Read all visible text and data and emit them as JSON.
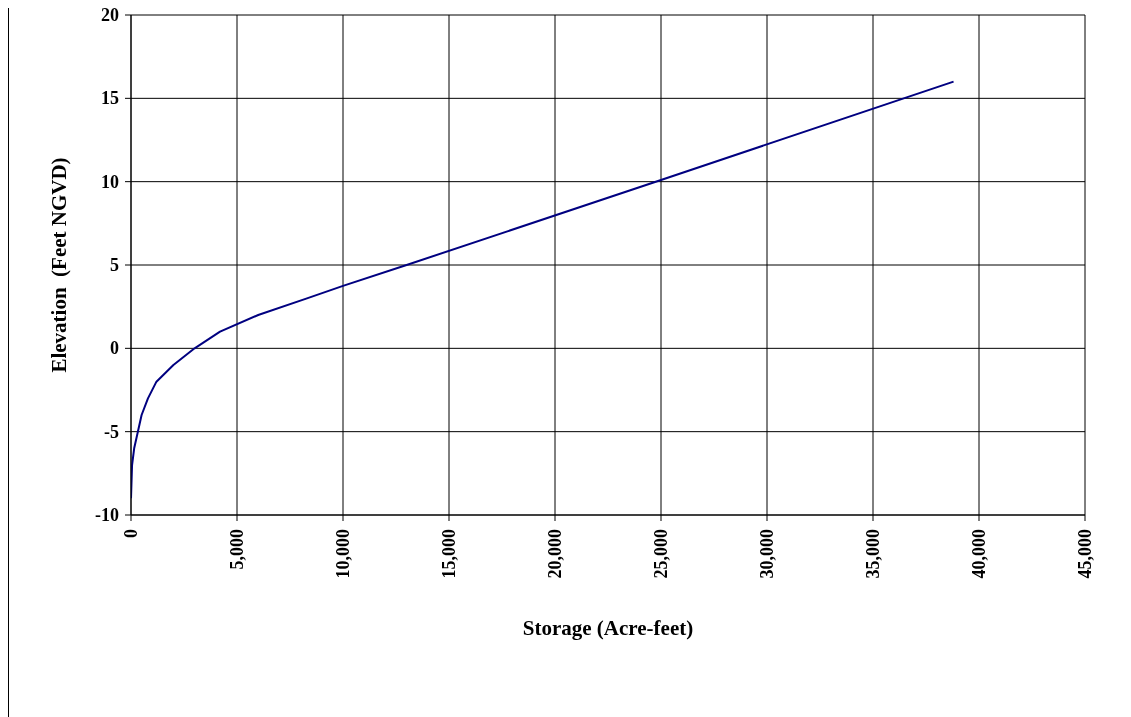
{
  "chart_data": {
    "type": "line",
    "xlabel": "Storage (Acre-feet)",
    "ylabel": "Elevation  (Feet NGVD)",
    "series": [
      {
        "color": "#000080",
        "x": [
          0,
          50,
          150,
          500,
          800,
          1200,
          2000,
          3000,
          4200,
          6000,
          8300,
          10000,
          13000,
          25000,
          38800
        ],
        "values": [
          -9,
          -7,
          -6,
          -4,
          -3,
          -2,
          -1,
          0,
          1,
          2,
          3,
          3.75,
          5,
          10.1,
          16
        ]
      }
    ],
    "xlim": [
      0,
      45000
    ],
    "xticks": [
      {
        "value": 0,
        "label": "0"
      },
      {
        "value": 5000,
        "label": "5,000"
      },
      {
        "value": 10000,
        "label": "10,000"
      },
      {
        "value": 15000,
        "label": "15,000"
      },
      {
        "value": 20000,
        "label": "20,000"
      },
      {
        "value": 25000,
        "label": "25,000"
      },
      {
        "value": 30000,
        "label": "30,000"
      },
      {
        "value": 35000,
        "label": "35,000"
      },
      {
        "value": 40000,
        "label": "40,000"
      },
      {
        "value": 45000,
        "label": "45,000"
      }
    ],
    "ylim": [
      -10,
      20
    ],
    "yticks": [
      -10,
      -5,
      0,
      5,
      10,
      15,
      20
    ],
    "grid": true,
    "marker": "none",
    "line_style": "solid"
  }
}
